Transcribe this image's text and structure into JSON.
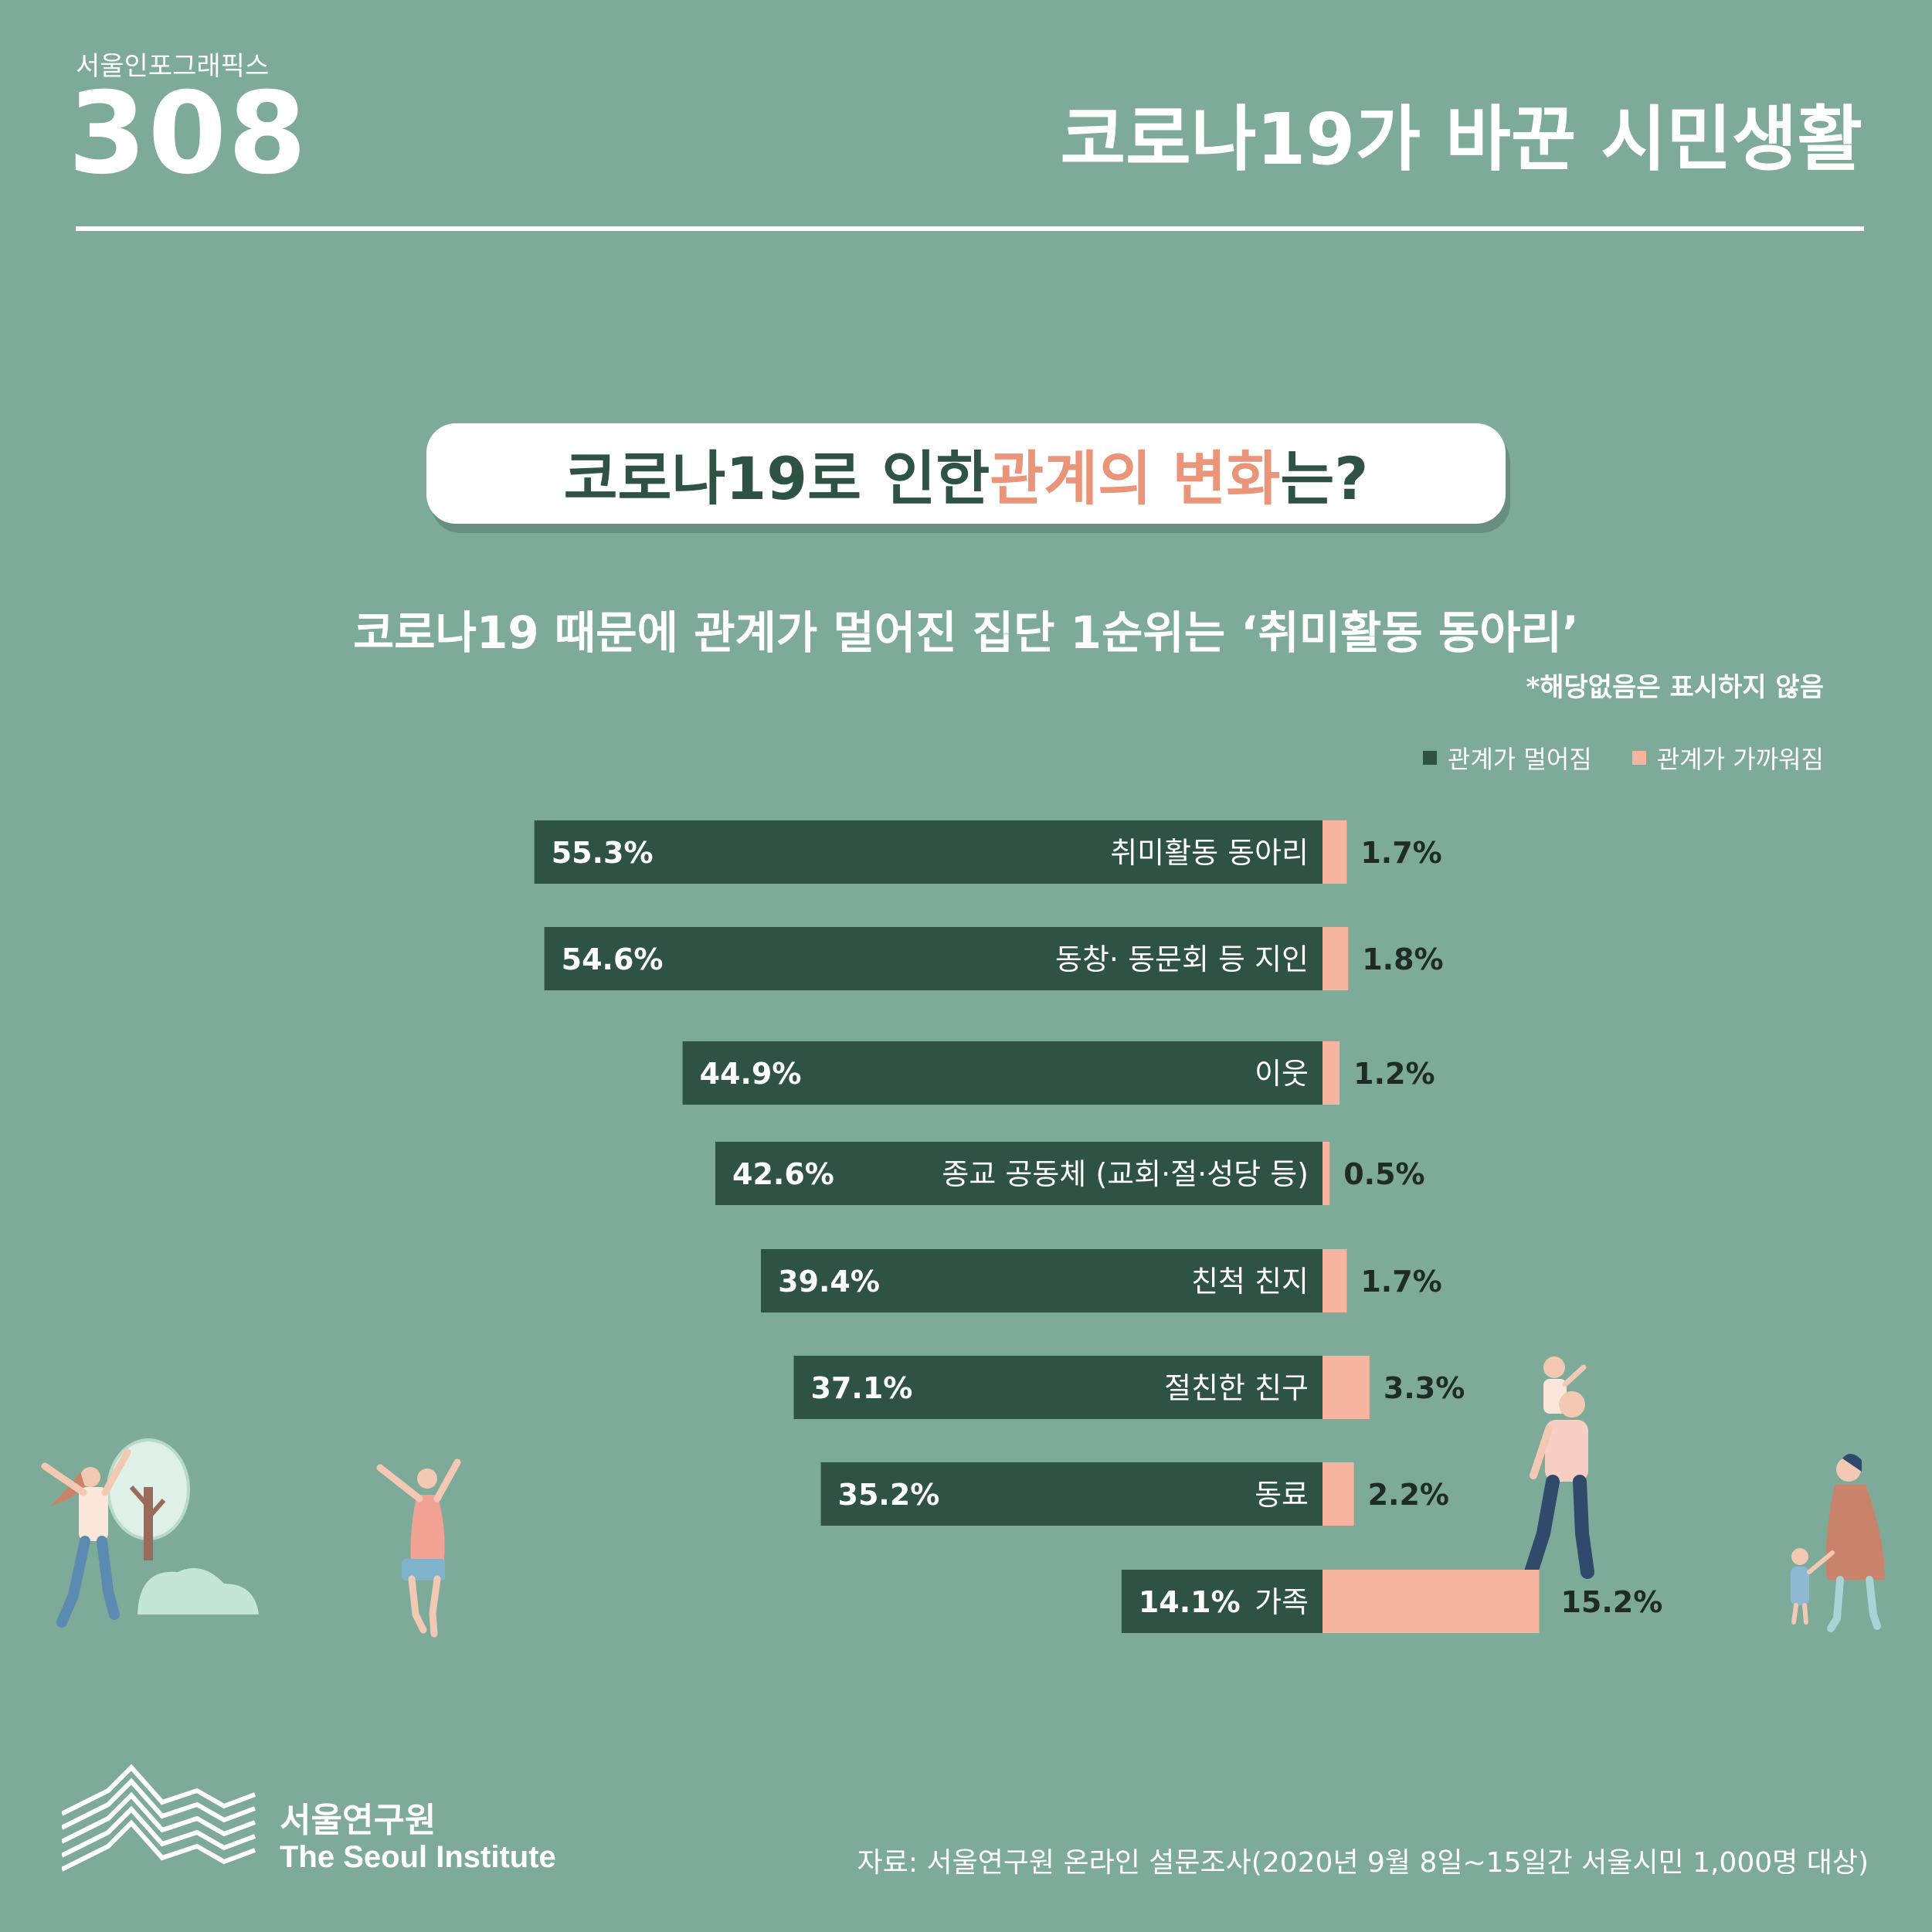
{
  "header": {
    "series_label": "서울인포그래픽스",
    "series_number": "308",
    "title": "코로나19가 바꾼 시민생활"
  },
  "question": {
    "part1": "코로나19로 인한 ",
    "highlight": "관계의 변화",
    "part2": "는?"
  },
  "subtitle": "코로나19 때문에 관계가 멀어진 집단 1순위는 ‘취미활동 동아리’",
  "note": "*해당없음은 표시하지 않음",
  "colors": {
    "background": "#7eab99",
    "farther": "#2e5244",
    "closer": "#f7b5a0",
    "highlight": "#ea957a"
  },
  "chart_data": {
    "type": "bar",
    "orientation": "horizontal-diverging",
    "categories": [
      "취미활동 동아리",
      "동창· 동문회 등 지인",
      "이웃",
      "종교 공동체 (교회·절·성당 등)",
      "친척 친지",
      "절친한 친구",
      "동료",
      "가족"
    ],
    "series": [
      {
        "name": "관계가 멀어짐",
        "values": [
          55.3,
          54.6,
          44.9,
          42.6,
          39.4,
          37.1,
          35.2,
          14.1
        ],
        "labels": [
          "55.3%",
          "54.6%",
          "44.9%",
          "42.6%",
          "39.4%",
          "37.1%",
          "35.2%",
          "14.1%"
        ]
      },
      {
        "name": "관계가 가까워짐",
        "values": [
          1.7,
          1.8,
          1.2,
          0.5,
          1.7,
          3.3,
          2.2,
          15.2
        ],
        "labels": [
          "1.7%",
          "1.8%",
          "1.2%",
          "0.5%",
          "1.7%",
          "3.3%",
          "2.2%",
          "15.2%"
        ]
      }
    ],
    "legend_position": "top-right"
  },
  "footer": {
    "org_kr": "서울연구원",
    "org_en": "The Seoul Institute",
    "source": "자료: 서울연구원 온라인 설문조사(2020년 9월 8일~15일간 서울시민 1,000명 대상)"
  }
}
